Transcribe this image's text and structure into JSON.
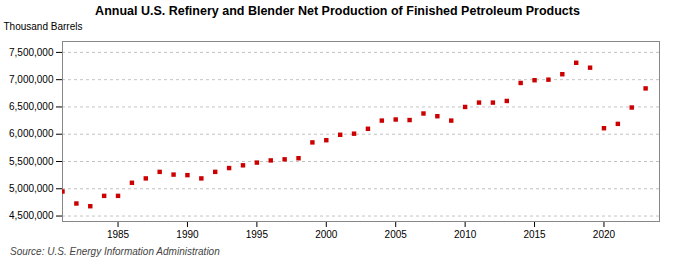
{
  "chart_data": {
    "type": "scatter",
    "title": "Annual U.S. Refinery and Blender Net Production of Finished Petroleum Products",
    "ylabel": "Thousand Barrels",
    "source": "Source: U.S. Energy Information Administration",
    "x": [
      1981,
      1982,
      1983,
      1984,
      1985,
      1986,
      1987,
      1988,
      1989,
      1990,
      1991,
      1992,
      1993,
      1994,
      1995,
      1996,
      1997,
      1998,
      1999,
      2000,
      2001,
      2002,
      2003,
      2004,
      2005,
      2006,
      2007,
      2008,
      2009,
      2010,
      2011,
      2012,
      2013,
      2014,
      2015,
      2016,
      2017,
      2018,
      2019,
      2020,
      2021,
      2022,
      2023
    ],
    "values": [
      4950000,
      4730000,
      4680000,
      4870000,
      4870000,
      5110000,
      5190000,
      5310000,
      5260000,
      5250000,
      5190000,
      5310000,
      5380000,
      5430000,
      5480000,
      5520000,
      5540000,
      5560000,
      5850000,
      5890000,
      5990000,
      6010000,
      6100000,
      6250000,
      6270000,
      6260000,
      6380000,
      6330000,
      6250000,
      6500000,
      6580000,
      6580000,
      6610000,
      6940000,
      6990000,
      7000000,
      7100000,
      7310000,
      7220000,
      6110000,
      6190000,
      6490000,
      6840000
    ],
    "color": "#cc0000",
    "marker": "square",
    "xlim": [
      1981,
      2024
    ],
    "xticks": [
      1985,
      1990,
      1995,
      2000,
      2005,
      2010,
      2015,
      2020
    ],
    "ylim": [
      4400000,
      7700000
    ],
    "yticks": [
      {
        "value": 4500000,
        "label": "4,500,000"
      },
      {
        "value": 5000000,
        "label": "5,000,000"
      },
      {
        "value": 5500000,
        "label": "5,500,000"
      },
      {
        "value": 6000000,
        "label": "6,000,000"
      },
      {
        "value": 6500000,
        "label": "6,500,000"
      },
      {
        "value": 7000000,
        "label": "7,000,000"
      },
      {
        "value": 7500000,
        "label": "7,500,000"
      }
    ],
    "grid": "y"
  }
}
